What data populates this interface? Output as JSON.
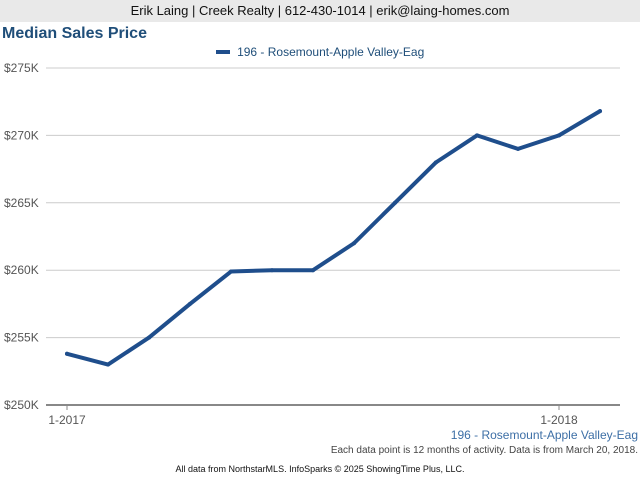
{
  "header": {
    "text": "Erik Laing | Creek Realty | 612-430-1014 | erik@laing-homes.com"
  },
  "colors": {
    "series": "#1f4e8c",
    "title": "#1f4e79",
    "grid": "#cccccc",
    "axis": "#888888"
  },
  "chart_data": {
    "type": "line",
    "title": "Median Sales Price",
    "xlabel": "",
    "ylabel": "",
    "ylim": [
      250000,
      275000
    ],
    "y_ticks": [
      250000,
      255000,
      260000,
      265000,
      270000,
      275000
    ],
    "y_tick_labels": [
      "$250K",
      "$255K",
      "$260K",
      "$265K",
      "$270K",
      "$275K"
    ],
    "x_tick_labels": [
      {
        "index": 0,
        "label": "1-2017"
      },
      {
        "index": 12,
        "label": "1-2018"
      }
    ],
    "x": [
      "1-2017",
      "2-2017",
      "3-2017",
      "4-2017",
      "5-2017",
      "6-2017",
      "7-2017",
      "8-2017",
      "9-2017",
      "10-2017",
      "11-2017",
      "12-2017",
      "1-2018",
      "2-2018"
    ],
    "series": [
      {
        "name": "196 - Rosemount-Apple Valley-Eag",
        "values": [
          253800,
          253000,
          255000,
          257500,
          259900,
          260000,
          260000,
          262000,
          265000,
          268000,
          270000,
          269000,
          270000,
          271800
        ]
      }
    ],
    "legend": "top-center"
  },
  "series_label": "196 - Rosemount-Apple Valley-Eag",
  "note": "Each data point is 12 months of activity. Data is from March 20, 2018.",
  "footer": "All data from NorthstarMLS. InfoSparks © 2025 ShowingTime Plus, LLC."
}
